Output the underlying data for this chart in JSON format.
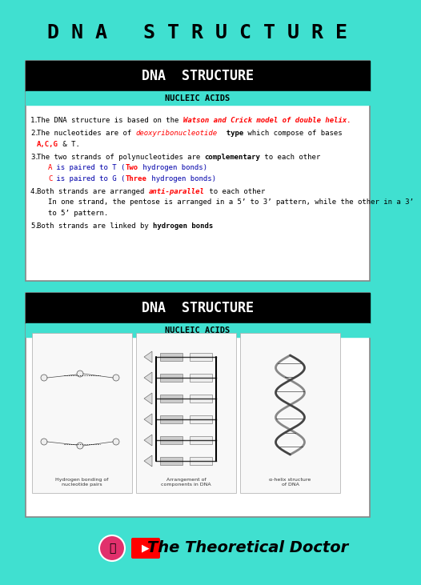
{
  "bg_color": "#40E0D0",
  "white_bg": "#FFFFFF",
  "black": "#000000",
  "teal": "#40E0D0",
  "red_text": "#FF0000",
  "blue_text": "#0000FF",
  "main_title": "D N A   S T R U C T U R E",
  "card_title": "DNA  STRUCTURE",
  "card_subtitle": "NUCLEIC ACIDS",
  "footer_text": "The Theoretical Doctor",
  "points": [
    {
      "num": "1.",
      "parts": [
        {
          "text": "The DNA structure is based on the ",
          "bold": false,
          "color": "#000000"
        },
        {
          "text": "Watson and Crick model of double helix.",
          "bold": true,
          "color": "#FF0000",
          "italic": true
        }
      ]
    },
    {
      "num": "2.",
      "parts": [
        {
          "text": "The nucleotides are of ",
          "bold": false,
          "color": "#000000"
        },
        {
          "text": "deoxyribonucleotide",
          "bold": false,
          "color": "#FF0000",
          "italic": true
        },
        {
          "text": "  type",
          "bold": true,
          "color": "#000000"
        },
        {
          "text": " which compose of bases",
          "bold": false,
          "color": "#000000"
        }
      ],
      "line2_parts": [
        {
          "text": "A,C,G",
          "bold": true,
          "color": "#FF0000"
        },
        {
          "text": " & T.",
          "bold": false,
          "color": "#000000"
        }
      ]
    },
    {
      "num": "3.",
      "parts": [
        {
          "text": "The two strands of polynucleotides are ",
          "bold": false,
          "color": "#000000"
        },
        {
          "text": "complementary",
          "bold": true,
          "color": "#000000"
        },
        {
          "text": " to each other",
          "bold": false,
          "color": "#000000"
        }
      ],
      "subpoints": [
        [
          {
            "text": "A",
            "bold": false,
            "color": "#FF0000"
          },
          {
            "text": " is paired to T (",
            "bold": false,
            "color": "#0000AA"
          },
          {
            "text": "Two",
            "bold": true,
            "color": "#FF0000"
          },
          {
            "text": " hydrogen bonds)",
            "bold": false,
            "color": "#0000AA"
          }
        ],
        [
          {
            "text": "C",
            "bold": false,
            "color": "#FF0000"
          },
          {
            "text": " is paired to G (",
            "bold": false,
            "color": "#0000AA"
          },
          {
            "text": "Three",
            "bold": true,
            "color": "#FF0000"
          },
          {
            "text": " hydrogen bonds)",
            "bold": false,
            "color": "#0000AA"
          }
        ]
      ]
    },
    {
      "num": "4.",
      "parts": [
        {
          "text": "Both strands are arranged ",
          "bold": false,
          "color": "#000000"
        },
        {
          "text": "anti-parallel",
          "bold": true,
          "color": "#FF0000",
          "italic": true
        },
        {
          "text": " to each other",
          "bold": false,
          "color": "#000000"
        }
      ],
      "subpoints": [
        [
          {
            "text": "In one strand, the pentose is arranged in a 5’ to 3’ pattern, while the other in a 3’",
            "bold": false,
            "color": "#000000"
          }
        ],
        [
          {
            "text": "to 5’ pattern.",
            "bold": false,
            "color": "#000000"
          }
        ]
      ]
    },
    {
      "num": "5.",
      "parts": [
        {
          "text": "Both strands are linked by ",
          "bold": false,
          "color": "#000000"
        },
        {
          "text": "hydrogen bonds",
          "bold": true,
          "color": "#000000"
        }
      ]
    }
  ]
}
